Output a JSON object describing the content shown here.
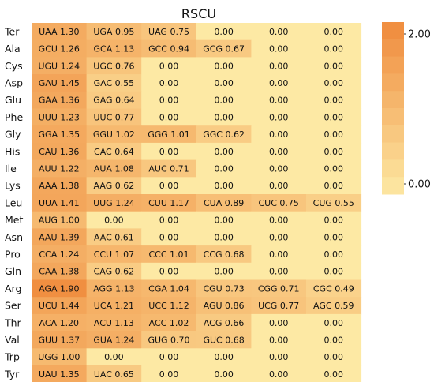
{
  "chart_data": {
    "type": "heatmap",
    "title": "RSCU",
    "colorbar": {
      "min": 0.0,
      "max": 2.0,
      "ticks": [
        "0.00",
        "2.00"
      ],
      "low_color": "#fde9a4",
      "high_color": "#ef8a3c"
    },
    "rows": [
      {
        "aa": "Ter",
        "cells": [
          [
            "UAA",
            1.3
          ],
          [
            "UGA",
            0.95
          ],
          [
            "UAG",
            0.75
          ],
          [
            null,
            0
          ],
          [
            null,
            0
          ],
          [
            null,
            0
          ]
        ]
      },
      {
        "aa": "Ala",
        "cells": [
          [
            "GCU",
            1.26
          ],
          [
            "GCA",
            1.13
          ],
          [
            "GCC",
            0.94
          ],
          [
            "GCG",
            0.67
          ],
          [
            null,
            0
          ],
          [
            null,
            0
          ]
        ]
      },
      {
        "aa": "Cys",
        "cells": [
          [
            "UGU",
            1.24
          ],
          [
            "UGC",
            0.76
          ],
          [
            null,
            0
          ],
          [
            null,
            0
          ],
          [
            null,
            0
          ],
          [
            null,
            0
          ]
        ]
      },
      {
        "aa": "Asp",
        "cells": [
          [
            "GAU",
            1.45
          ],
          [
            "GAC",
            0.55
          ],
          [
            null,
            0
          ],
          [
            null,
            0
          ],
          [
            null,
            0
          ],
          [
            null,
            0
          ]
        ]
      },
      {
        "aa": "Glu",
        "cells": [
          [
            "GAA",
            1.36
          ],
          [
            "GAG",
            0.64
          ],
          [
            null,
            0
          ],
          [
            null,
            0
          ],
          [
            null,
            0
          ],
          [
            null,
            0
          ]
        ]
      },
      {
        "aa": "Phe",
        "cells": [
          [
            "UUU",
            1.23
          ],
          [
            "UUC",
            0.77
          ],
          [
            null,
            0
          ],
          [
            null,
            0
          ],
          [
            null,
            0
          ],
          [
            null,
            0
          ]
        ]
      },
      {
        "aa": "Gly",
        "cells": [
          [
            "GGA",
            1.35
          ],
          [
            "GGU",
            1.02
          ],
          [
            "GGG",
            1.01
          ],
          [
            "GGC",
            0.62
          ],
          [
            null,
            0
          ],
          [
            null,
            0
          ]
        ]
      },
      {
        "aa": "His",
        "cells": [
          [
            "CAU",
            1.36
          ],
          [
            "CAC",
            0.64
          ],
          [
            null,
            0
          ],
          [
            null,
            0
          ],
          [
            null,
            0
          ],
          [
            null,
            0
          ]
        ]
      },
      {
        "aa": "Ile",
        "cells": [
          [
            "AUU",
            1.22
          ],
          [
            "AUA",
            1.08
          ],
          [
            "AUC",
            0.71
          ],
          [
            null,
            0
          ],
          [
            null,
            0
          ],
          [
            null,
            0
          ]
        ]
      },
      {
        "aa": "Lys",
        "cells": [
          [
            "AAA",
            1.38
          ],
          [
            "AAG",
            0.62
          ],
          [
            null,
            0
          ],
          [
            null,
            0
          ],
          [
            null,
            0
          ],
          [
            null,
            0
          ]
        ]
      },
      {
        "aa": "Leu",
        "cells": [
          [
            "UUA",
            1.41
          ],
          [
            "UUG",
            1.24
          ],
          [
            "CUU",
            1.17
          ],
          [
            "CUA",
            0.89
          ],
          [
            "CUC",
            0.75
          ],
          [
            "CUG",
            0.55
          ]
        ]
      },
      {
        "aa": "Met",
        "cells": [
          [
            "AUG",
            1.0
          ],
          [
            null,
            0
          ],
          [
            null,
            0
          ],
          [
            null,
            0
          ],
          [
            null,
            0
          ],
          [
            null,
            0
          ]
        ]
      },
      {
        "aa": "Asn",
        "cells": [
          [
            "AAU",
            1.39
          ],
          [
            "AAC",
            0.61
          ],
          [
            null,
            0
          ],
          [
            null,
            0
          ],
          [
            null,
            0
          ],
          [
            null,
            0
          ]
        ]
      },
      {
        "aa": "Pro",
        "cells": [
          [
            "CCA",
            1.24
          ],
          [
            "CCU",
            1.07
          ],
          [
            "CCC",
            1.01
          ],
          [
            "CCG",
            0.68
          ],
          [
            null,
            0
          ],
          [
            null,
            0
          ]
        ]
      },
      {
        "aa": "Gln",
        "cells": [
          [
            "CAA",
            1.38
          ],
          [
            "CAG",
            0.62
          ],
          [
            null,
            0
          ],
          [
            null,
            0
          ],
          [
            null,
            0
          ],
          [
            null,
            0
          ]
        ]
      },
      {
        "aa": "Arg",
        "cells": [
          [
            "AGA",
            1.9
          ],
          [
            "AGG",
            1.13
          ],
          [
            "CGA",
            1.04
          ],
          [
            "CGU",
            0.73
          ],
          [
            "CGG",
            0.71
          ],
          [
            "CGC",
            0.49
          ]
        ]
      },
      {
        "aa": "Ser",
        "cells": [
          [
            "UCU",
            1.44
          ],
          [
            "UCA",
            1.21
          ],
          [
            "UCC",
            1.12
          ],
          [
            "AGU",
            0.86
          ],
          [
            "UCG",
            0.77
          ],
          [
            "AGC",
            0.59
          ]
        ]
      },
      {
        "aa": "Thr",
        "cells": [
          [
            "ACA",
            1.2
          ],
          [
            "ACU",
            1.13
          ],
          [
            "ACC",
            1.02
          ],
          [
            "ACG",
            0.66
          ],
          [
            null,
            0
          ],
          [
            null,
            0
          ]
        ]
      },
      {
        "aa": "Val",
        "cells": [
          [
            "GUU",
            1.37
          ],
          [
            "GUA",
            1.24
          ],
          [
            "GUG",
            0.7
          ],
          [
            "GUC",
            0.68
          ],
          [
            null,
            0
          ],
          [
            null,
            0
          ]
        ]
      },
      {
        "aa": "Trp",
        "cells": [
          [
            "UGG",
            1.0
          ],
          [
            null,
            0
          ],
          [
            null,
            0
          ],
          [
            null,
            0
          ],
          [
            null,
            0
          ],
          [
            null,
            0
          ]
        ]
      },
      {
        "aa": "Tyr",
        "cells": [
          [
            "UAU",
            1.35
          ],
          [
            "UAC",
            0.65
          ],
          [
            null,
            0
          ],
          [
            null,
            0
          ],
          [
            null,
            0
          ],
          [
            null,
            0
          ]
        ]
      }
    ]
  }
}
